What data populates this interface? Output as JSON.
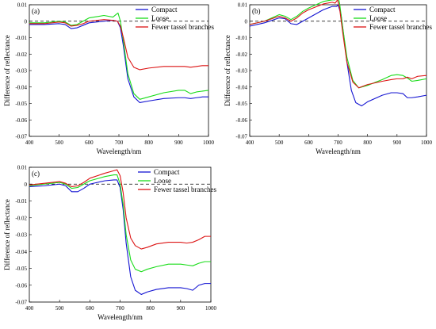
{
  "colors": {
    "compact": "#1414d2",
    "loose": "#19dc19",
    "fewer": "#dc1414",
    "zero_line": "#000000"
  },
  "chart_data": [
    {
      "type": "line",
      "panel_label": "(a)",
      "xlabel": "Wavelength/nm",
      "ylabel": "Difference of reflectance",
      "xlim": [
        400,
        1000
      ],
      "ylim": [
        -0.07,
        0.01
      ],
      "xticks": [
        "400",
        "500",
        "600",
        "700",
        "800",
        "900",
        "1000"
      ],
      "yticks": [
        "0.01",
        "0",
        "-0.01",
        "-0.02",
        "-0.03",
        "-0.04",
        "-0.05",
        "-0.06",
        "-0.07"
      ],
      "legend_position": "top-right",
      "reference_line": 0,
      "series": [
        {
          "name": "Compact",
          "color_key": "compact",
          "x": [
            400,
            450,
            500,
            520,
            540,
            560,
            580,
            600,
            650,
            680,
            695,
            705,
            715,
            730,
            750,
            770,
            800,
            850,
            900,
            920,
            940,
            960,
            980,
            1000
          ],
          "y": [
            -0.002,
            -0.002,
            -0.0015,
            -0.002,
            -0.0045,
            -0.004,
            -0.0025,
            -0.001,
            0.0,
            0.0005,
            0.0,
            -0.004,
            -0.015,
            -0.035,
            -0.046,
            -0.0495,
            -0.0485,
            -0.047,
            -0.0465,
            -0.0465,
            -0.047,
            -0.0465,
            -0.046,
            -0.046
          ]
        },
        {
          "name": "Loose",
          "color_key": "loose",
          "x": [
            400,
            450,
            500,
            520,
            540,
            560,
            580,
            600,
            650,
            680,
            690,
            697,
            705,
            715,
            730,
            750,
            770,
            800,
            850,
            900,
            920,
            940,
            960,
            980,
            1000
          ],
          "y": [
            -0.001,
            -0.001,
            0.0,
            -0.0005,
            -0.0025,
            -0.002,
            0.0,
            0.002,
            0.0035,
            0.0025,
            0.004,
            0.005,
            0.0,
            -0.012,
            -0.032,
            -0.044,
            -0.0475,
            -0.046,
            -0.0435,
            -0.042,
            -0.042,
            -0.044,
            -0.043,
            -0.0425,
            -0.042
          ]
        },
        {
          "name": "Fewer tassel branches",
          "color_key": "fewer",
          "x": [
            400,
            450,
            500,
            520,
            540,
            560,
            580,
            600,
            650,
            680,
            695,
            705,
            715,
            730,
            750,
            770,
            800,
            850,
            900,
            920,
            940,
            960,
            980,
            1000
          ],
          "y": [
            -0.0015,
            -0.0015,
            -0.0005,
            -0.001,
            -0.003,
            -0.0025,
            -0.0015,
            0.0,
            0.001,
            0.0005,
            0.0,
            -0.003,
            -0.01,
            -0.022,
            -0.028,
            -0.0295,
            -0.0285,
            -0.0275,
            -0.0275,
            -0.0275,
            -0.028,
            -0.0275,
            -0.027,
            -0.027
          ]
        }
      ]
    },
    {
      "type": "line",
      "panel_label": "(b)",
      "xlabel": "Wavelength/nm",
      "ylabel": "Difference of reflectance",
      "xlim": [
        400,
        1000
      ],
      "ylim": [
        -0.07,
        0.01
      ],
      "xticks": [
        "400",
        "500",
        "600",
        "700",
        "800",
        "900",
        "1000"
      ],
      "yticks": [
        "0.01",
        "0",
        "-0.01",
        "-0.02",
        "-0.03",
        "-0.04",
        "-0.05",
        "-0.06",
        "-0.07"
      ],
      "legend_position": "top-right",
      "reference_line": 0,
      "series": [
        {
          "name": "Compact",
          "color_key": "compact",
          "x": [
            400,
            450,
            500,
            520,
            540,
            560,
            580,
            600,
            650,
            680,
            695,
            700,
            710,
            720,
            730,
            745,
            760,
            780,
            800,
            850,
            880,
            900,
            920,
            935,
            950,
            970,
            1000
          ],
          "y": [
            -0.003,
            -0.001,
            0.002,
            0.0015,
            -0.0015,
            -0.002,
            0.0,
            0.002,
            0.007,
            0.009,
            0.009,
            0.01,
            0.004,
            -0.01,
            -0.025,
            -0.042,
            -0.0495,
            -0.0515,
            -0.049,
            -0.045,
            -0.0435,
            -0.0435,
            -0.044,
            -0.0465,
            -0.0465,
            -0.046,
            -0.045
          ]
        },
        {
          "name": "Loose",
          "color_key": "loose",
          "x": [
            400,
            450,
            500,
            520,
            540,
            560,
            580,
            600,
            650,
            680,
            690,
            698,
            705,
            715,
            730,
            750,
            770,
            800,
            850,
            880,
            900,
            920,
            935,
            950,
            970,
            1000
          ],
          "y": [
            -0.002,
            0.0,
            0.004,
            0.003,
            0.001,
            0.003,
            0.006,
            0.008,
            0.012,
            0.013,
            0.013,
            0.0165,
            0.011,
            -0.003,
            -0.022,
            -0.036,
            -0.0405,
            -0.039,
            -0.0355,
            -0.033,
            -0.0325,
            -0.033,
            -0.0345,
            -0.0365,
            -0.036,
            -0.035
          ]
        },
        {
          "name": "Fewer tassel branches",
          "color_key": "fewer",
          "x": [
            400,
            450,
            500,
            520,
            540,
            560,
            580,
            600,
            650,
            680,
            690,
            698,
            705,
            715,
            730,
            750,
            770,
            800,
            850,
            880,
            900,
            920,
            935,
            950,
            970,
            1000
          ],
          "y": [
            -0.002,
            0.0,
            0.003,
            0.002,
            0.0,
            0.002,
            0.005,
            0.007,
            0.0105,
            0.0115,
            0.011,
            0.013,
            0.008,
            -0.006,
            -0.025,
            -0.037,
            -0.0405,
            -0.0385,
            -0.0365,
            -0.0355,
            -0.035,
            -0.035,
            -0.034,
            -0.035,
            -0.0335,
            -0.033
          ]
        }
      ]
    },
    {
      "type": "line",
      "panel_label": "(c)",
      "xlabel": "Wavelength/nm",
      "ylabel": "Difference of reflectance",
      "xlim": [
        400,
        1000
      ],
      "ylim": [
        -0.07,
        0.01
      ],
      "xticks": [
        "400",
        "500",
        "600",
        "700",
        "800",
        "900",
        "1000"
      ],
      "yticks": [
        "0.01",
        "0",
        "-0.01",
        "-0.02",
        "-0.03",
        "-0.04",
        "-0.05",
        "-0.06",
        "-0.07"
      ],
      "legend_position": "top-right",
      "reference_line": 0,
      "series": [
        {
          "name": "Compact",
          "color_key": "compact",
          "x": [
            400,
            450,
            500,
            520,
            540,
            560,
            580,
            600,
            650,
            680,
            690,
            700,
            710,
            720,
            735,
            750,
            770,
            790,
            820,
            860,
            900,
            920,
            940,
            960,
            980,
            1000
          ],
          "y": [
            -0.0015,
            -0.001,
            0.0,
            -0.001,
            -0.0045,
            -0.0045,
            -0.0025,
            0.0,
            0.002,
            0.0025,
            0.0025,
            -0.002,
            -0.015,
            -0.035,
            -0.055,
            -0.063,
            -0.0655,
            -0.064,
            -0.0625,
            -0.0615,
            -0.0615,
            -0.062,
            -0.063,
            -0.06,
            -0.059,
            -0.059
          ]
        },
        {
          "name": "Loose",
          "color_key": "loose",
          "x": [
            400,
            450,
            500,
            520,
            540,
            560,
            580,
            600,
            650,
            680,
            690,
            700,
            710,
            720,
            735,
            750,
            770,
            790,
            820,
            860,
            900,
            920,
            940,
            960,
            980,
            1000
          ],
          "y": [
            -0.001,
            0.0,
            0.001,
            0.0,
            -0.0025,
            -0.002,
            0.0,
            0.002,
            0.0045,
            0.0055,
            0.0055,
            0.0,
            -0.012,
            -0.03,
            -0.045,
            -0.0505,
            -0.052,
            -0.0505,
            -0.049,
            -0.0475,
            -0.0475,
            -0.048,
            -0.0485,
            -0.047,
            -0.046,
            -0.046
          ]
        },
        {
          "name": "Fewer tassel branches",
          "color_key": "fewer",
          "x": [
            400,
            450,
            500,
            520,
            540,
            560,
            580,
            600,
            650,
            680,
            690,
            700,
            710,
            720,
            735,
            750,
            770,
            790,
            820,
            860,
            900,
            920,
            940,
            960,
            980,
            1000
          ],
          "y": [
            -0.0005,
            0.0005,
            0.0015,
            0.0005,
            -0.0015,
            -0.001,
            0.001,
            0.0035,
            0.0065,
            0.008,
            0.0085,
            0.005,
            -0.005,
            -0.02,
            -0.032,
            -0.0365,
            -0.0385,
            -0.0375,
            -0.0355,
            -0.0345,
            -0.0345,
            -0.035,
            -0.0345,
            -0.033,
            -0.031,
            -0.031
          ]
        }
      ]
    }
  ]
}
